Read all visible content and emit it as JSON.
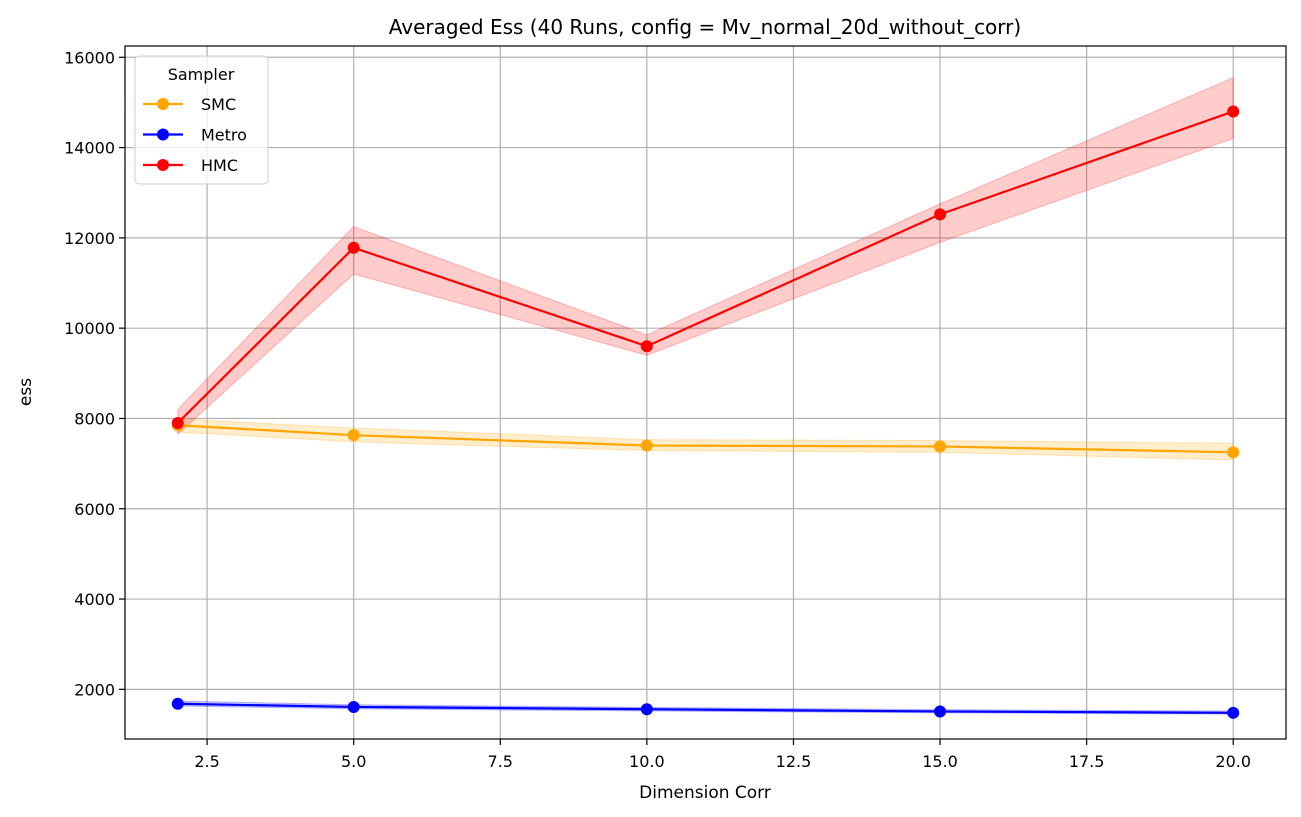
{
  "chart_data": {
    "type": "line",
    "title": "Averaged Ess (40 Runs, config = Mv_normal_20d_without_corr)",
    "xlabel": "Dimension Corr",
    "ylabel": "ess",
    "x": [
      2,
      5,
      10,
      15,
      20
    ],
    "xlim": [
      1.1,
      20.9
    ],
    "ylim": [
      900,
      16250
    ],
    "xticks": [
      2.5,
      5.0,
      7.5,
      10.0,
      12.5,
      15.0,
      17.5,
      20.0
    ],
    "xtick_labels": [
      "2.5",
      "5.0",
      "7.5",
      "10.0",
      "12.5",
      "15.0",
      "17.5",
      "20.0"
    ],
    "yticks": [
      2000,
      4000,
      6000,
      8000,
      10000,
      12000,
      14000,
      16000
    ],
    "ytick_labels": [
      "2000",
      "4000",
      "6000",
      "8000",
      "10000",
      "12000",
      "14000",
      "16000"
    ],
    "grid": true,
    "legend": {
      "title": "Sampler",
      "position": "top-left"
    },
    "series": [
      {
        "name": "SMC",
        "color": "#ffa500",
        "values": [
          7850,
          7630,
          7400,
          7380,
          7250
        ],
        "lower": [
          7700,
          7480,
          7290,
          7250,
          7080
        ],
        "upper": [
          7990,
          7790,
          7530,
          7510,
          7450
        ]
      },
      {
        "name": "Metro",
        "color": "#0000ff",
        "values": [
          1680,
          1610,
          1560,
          1510,
          1480
        ],
        "lower": [
          1630,
          1570,
          1520,
          1480,
          1450
        ],
        "upper": [
          1740,
          1660,
          1600,
          1550,
          1520
        ]
      },
      {
        "name": "HMC",
        "color": "#ff0000",
        "values": [
          7900,
          11780,
          9600,
          12520,
          14800
        ],
        "lower": [
          7650,
          11200,
          9400,
          11900,
          14200
        ],
        "upper": [
          8200,
          12250,
          9850,
          12750,
          15550
        ]
      }
    ]
  }
}
